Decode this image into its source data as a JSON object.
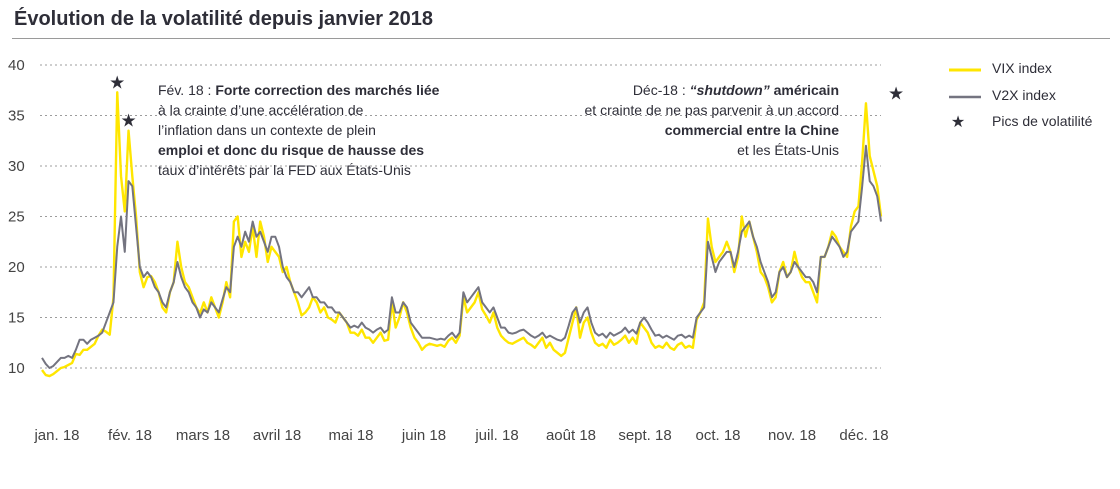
{
  "chart_data": {
    "type": "line",
    "title": "Évolution de la volatilité depuis janvier 2018",
    "ylim": [
      5,
      42
    ],
    "yticks": [
      10,
      15,
      20,
      25,
      30,
      35,
      40
    ],
    "xticks": [
      "jan. 18",
      "fév. 18",
      "mars 18",
      "avril 18",
      "mai 18",
      "juin 18",
      "juil. 18",
      "août 18",
      "sept. 18",
      "oct. 18",
      "nov. 18",
      "déc. 18"
    ],
    "grid": true,
    "legend_position": "right",
    "legend": [
      "VIX index",
      "V2X index",
      "Pics de volatilité"
    ],
    "colors": {
      "vix": "#ffe600",
      "v2x": "#747480",
      "star": "#2e2e38"
    },
    "series": [
      {
        "name": "VIX index",
        "key": "vix",
        "values": [
          9.8,
          9.3,
          9.2,
          9.4,
          9.7,
          10.0,
          10.1,
          10.3,
          10.5,
          11.4,
          11.3,
          11.8,
          11.8,
          12.1,
          12.4,
          13.2,
          13.8,
          13.6,
          13.3,
          17.0,
          37.3,
          29.0,
          25.5,
          33.5,
          29.0,
          25.0,
          19.5,
          18.0,
          19.0,
          19.1,
          18.5,
          17.5,
          16.0,
          15.5,
          17.5,
          18.5,
          22.5,
          20.0,
          18.5,
          18.0,
          17.0,
          16.0,
          15.4,
          16.5,
          15.5,
          17.0,
          16.0,
          15.0,
          16.5,
          18.5,
          17.0,
          24.5,
          25.0,
          21.0,
          22.5,
          21.5,
          24.0,
          21.0,
          24.5,
          23.0,
          20.5,
          22.0,
          21.5,
          21.0,
          19.5,
          20.0,
          18.5,
          17.5,
          16.5,
          15.2,
          15.5,
          16.0,
          17.0,
          16.5,
          15.5,
          16.0,
          15.0,
          14.8,
          14.5,
          15.5,
          15.0,
          14.5,
          13.5,
          13.5,
          13.2,
          13.8,
          13.0,
          13.0,
          12.5,
          13.0,
          13.5,
          12.7,
          12.8,
          16.5,
          14.0,
          15.0,
          16.5,
          15.5,
          14.0,
          13.0,
          12.5,
          11.8,
          12.2,
          12.4,
          12.3,
          12.2,
          12.3,
          12.1,
          12.7,
          13.0,
          12.5,
          13.2,
          17.0,
          15.5,
          16.0,
          16.5,
          17.5,
          15.8,
          15.2,
          14.5,
          15.5,
          14.0,
          13.2,
          12.8,
          12.5,
          12.4,
          12.6,
          12.8,
          13.0,
          12.5,
          12.3,
          12.0,
          12.5,
          13.0,
          12.0,
          12.5,
          11.8,
          11.5,
          11.2,
          11.5,
          13.0,
          14.5,
          16.0,
          13.0,
          14.5,
          15.0,
          13.5,
          12.5,
          12.2,
          12.4,
          12.0,
          12.8,
          12.3,
          12.5,
          12.8,
          13.2,
          12.5,
          13.0,
          12.4,
          14.5,
          14.0,
          13.5,
          12.5,
          12.0,
          12.2,
          12.0,
          12.5,
          12.0,
          11.8,
          12.3,
          12.5,
          12.0,
          12.2,
          12.0,
          14.8,
          15.5,
          16.5,
          24.8,
          22.0,
          20.5,
          21.0,
          21.5,
          22.5,
          21.5,
          19.5,
          21.0,
          25.0,
          23.0,
          24.5,
          23.0,
          21.5,
          19.5,
          19.0,
          18.0,
          16.5,
          17.0,
          19.5,
          20.5,
          19.0,
          19.5,
          21.5,
          20.0,
          19.0,
          18.5,
          18.5,
          17.5,
          16.5,
          21.0,
          21.0,
          22.0,
          23.5,
          23.0,
          22.0,
          21.5,
          21.0,
          24.0,
          25.5,
          26.0,
          30.5,
          36.2,
          31.0,
          29.5,
          28.0,
          25.0
        ]
      },
      {
        "name": "V2X index",
        "key": "v2x",
        "values": [
          11.0,
          10.4,
          10.0,
          10.2,
          10.6,
          11.0,
          11.0,
          11.2,
          11.0,
          11.8,
          12.8,
          12.8,
          12.4,
          12.8,
          13.0,
          13.2,
          13.5,
          14.5,
          15.5,
          16.5,
          22.0,
          25.0,
          21.5,
          28.5,
          28.0,
          24.0,
          20.0,
          19.0,
          19.5,
          19.0,
          18.0,
          17.5,
          16.5,
          16.0,
          17.5,
          18.5,
          20.5,
          19.0,
          18.0,
          17.5,
          16.5,
          16.0,
          15.0,
          15.8,
          15.5,
          16.5,
          16.0,
          15.5,
          16.8,
          18.0,
          17.5,
          22.0,
          23.0,
          22.0,
          23.5,
          22.5,
          24.5,
          23.0,
          23.5,
          22.5,
          21.5,
          23.0,
          23.0,
          22.0,
          20.0,
          19.0,
          18.5,
          17.5,
          17.5,
          17.0,
          17.5,
          18.0,
          17.0,
          17.0,
          16.5,
          16.5,
          16.0,
          16.0,
          15.5,
          15.5,
          15.0,
          14.5,
          14.0,
          14.2,
          14.0,
          14.5,
          14.0,
          13.8,
          13.5,
          13.8,
          14.0,
          13.5,
          13.8,
          17.0,
          15.5,
          15.5,
          16.5,
          16.0,
          14.5,
          14.0,
          13.5,
          13.0,
          13.0,
          13.0,
          12.9,
          12.8,
          12.9,
          12.8,
          13.2,
          13.5,
          13.0,
          13.5,
          17.5,
          16.5,
          17.0,
          17.5,
          18.0,
          16.5,
          16.0,
          15.5,
          16.0,
          15.0,
          14.0,
          14.0,
          13.5,
          13.4,
          13.5,
          13.7,
          13.8,
          13.5,
          13.2,
          13.0,
          13.2,
          13.5,
          13.0,
          13.2,
          13.0,
          12.8,
          12.7,
          13.0,
          14.2,
          15.5,
          16.0,
          14.5,
          15.5,
          16.0,
          14.5,
          13.5,
          13.2,
          13.4,
          13.0,
          13.5,
          13.2,
          13.4,
          13.6,
          14.0,
          13.5,
          13.8,
          13.4,
          14.5,
          15.0,
          14.5,
          13.8,
          13.2,
          13.3,
          13.0,
          13.2,
          13.0,
          12.8,
          13.2,
          13.3,
          13.0,
          13.2,
          13.0,
          15.0,
          15.5,
          16.0,
          22.5,
          21.0,
          19.5,
          20.5,
          21.0,
          21.5,
          21.5,
          20.0,
          21.5,
          23.5,
          24.0,
          24.5,
          23.0,
          22.0,
          20.5,
          19.5,
          18.5,
          17.0,
          17.5,
          19.5,
          20.0,
          19.0,
          19.5,
          20.5,
          20.0,
          19.5,
          19.0,
          19.0,
          18.5,
          17.5,
          21.0,
          21.0,
          22.0,
          23.0,
          22.5,
          22.0,
          21.0,
          21.5,
          23.5,
          24.0,
          24.5,
          28.0,
          32.0,
          28.5,
          28.0,
          27.0,
          24.5
        ]
      }
    ],
    "peaks": [
      {
        "series": "vix",
        "index": 20,
        "value": 37.3
      },
      {
        "series": "vix",
        "index": 23,
        "value": 33.5
      },
      {
        "series": "vix",
        "index": 227,
        "value": 36.2
      }
    ],
    "annotations": {
      "feb": {
        "prefix": "Fév. 18 : ",
        "lines": [
          "Forte correction des marchés liée",
          "à la crainte d’une accélération de",
          "l’inflation dans un contexte de plein",
          "emploi et donc du risque de hausse des",
          "taux d’intérêts par la FED aux États-Unis"
        ]
      },
      "dec": {
        "prefix": "Déc-18 : ",
        "quoted": "“shutdown”",
        "suffix": " américain",
        "lines": [
          "et crainte de ne pas parvenir à un accord",
          "commercial entre la Chine",
          "et les États-Unis"
        ]
      }
    }
  }
}
